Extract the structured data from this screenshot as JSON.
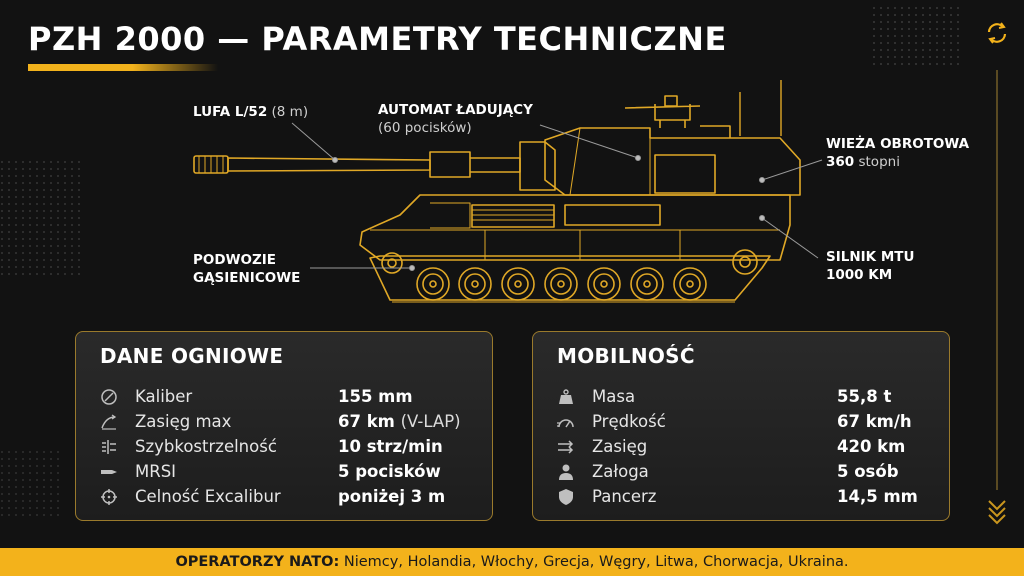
{
  "title": "PZH 2000 — PARAMETRY TECHNICZNE",
  "callouts": {
    "barrel": {
      "bold": "LUFA L/52",
      "normal": "(8 m)"
    },
    "autoloader": {
      "bold": "AUTOMAT ŁADUJĄCY",
      "normal": "(60 pocisków)"
    },
    "turret": {
      "bold": "WIEŻA OBROTOWA",
      "num": "360",
      "normal": "stopni"
    },
    "chassis": {
      "line1": "PODWOZIE",
      "line2": "GĄSIENICOWE"
    },
    "engine": {
      "line1": "SILNIK MTU",
      "line2": "1000 KM"
    }
  },
  "fire": {
    "heading": "DANE OGNIOWE",
    "rows": [
      {
        "icon": "caliber-icon",
        "label": "Kaliber",
        "value": "155 mm",
        "note": ""
      },
      {
        "icon": "range-arc-icon",
        "label": "Zasięg max",
        "value": "67 km",
        "note": "(V-LAP)"
      },
      {
        "icon": "rate-of-fire-icon",
        "label": "Szybkostrzelność",
        "value": "10 strz/min",
        "note": ""
      },
      {
        "icon": "shell-icon",
        "label": "MRSI",
        "value": "5 pocisków",
        "note": ""
      },
      {
        "icon": "crosshair-icon",
        "label": "Celność Excalibur",
        "value": "poniżej 3 m",
        "note": ""
      }
    ]
  },
  "mobility": {
    "heading": "MOBILNOŚĆ",
    "rows": [
      {
        "icon": "weight-icon",
        "label": "Masa",
        "value": "55,8 t"
      },
      {
        "icon": "speedometer-icon",
        "label": "Prędkość",
        "value": "67 km/h"
      },
      {
        "icon": "range-arrows-icon",
        "label": "Zasięg",
        "value": "420 km"
      },
      {
        "icon": "crew-icon",
        "label": "Załoga",
        "value": "5 osób"
      },
      {
        "icon": "shield-icon",
        "label": "Pancerz",
        "value": "14,5 mm"
      }
    ]
  },
  "footer": {
    "label": "OPERATORZY NATO:",
    "text": "Niemcy, Holandia, Włochy, Grecja, Węgry, Litwa, Chorwacja, Ukraina."
  },
  "colors": {
    "accent": "#f3b21b",
    "background": "#121212",
    "line": "#e0a826"
  }
}
